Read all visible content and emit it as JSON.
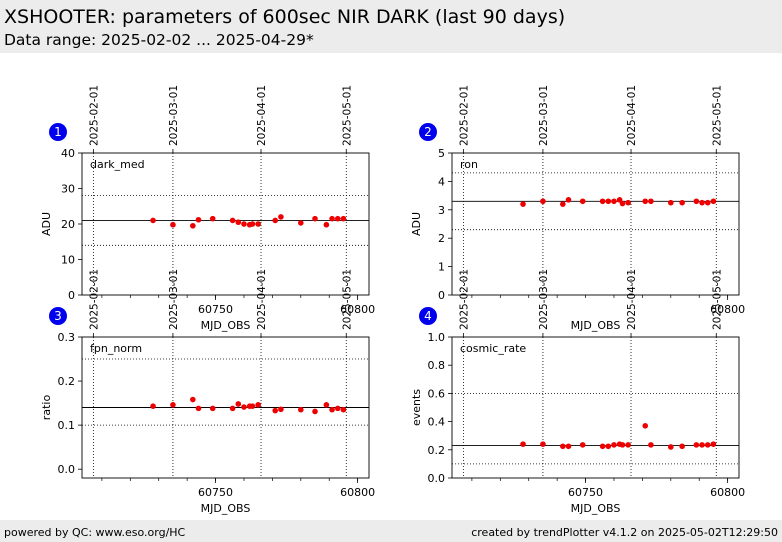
{
  "header": {
    "title": "XSHOOTER: parameters of 600sec NIR DARK (last 90 days)",
    "subtitle": "Data range: 2025-02-02 ... 2025-04-29*"
  },
  "footer": {
    "left": "powered by QC: www.eso.org/HC",
    "right": "created by trendPlotter v4.1.2 on 2025-05-02T12:29:50"
  },
  "colors": {
    "points": "#ee0000",
    "badge": "#0000ee"
  },
  "chart_data": [
    {
      "type": "scatter",
      "badge": "1",
      "label": "dark_med",
      "xlabel": "MJD_OBS",
      "ylabel": "ADU",
      "xlim": [
        60703,
        60804
      ],
      "ylim": [
        0,
        40
      ],
      "xticks": [
        60750,
        60800
      ],
      "yticks": [
        0,
        10,
        20,
        30,
        40
      ],
      "date_ticks": [
        {
          "mjd": 60707,
          "label": "2025-02-01"
        },
        {
          "mjd": 60735,
          "label": "2025-03-01"
        },
        {
          "mjd": 60766,
          "label": "2025-04-01"
        },
        {
          "mjd": 60796,
          "label": "2025-05-01"
        }
      ],
      "hlines": [
        {
          "y": 21,
          "style": "solid"
        },
        {
          "y": 28,
          "style": "dotted"
        },
        {
          "y": 14,
          "style": "dotted"
        }
      ],
      "x": [
        60728,
        60735,
        60742,
        60744,
        60749,
        60756,
        60758,
        60760,
        60762,
        60763,
        60765,
        60771,
        60773,
        60780,
        60785,
        60789,
        60791,
        60793,
        60795
      ],
      "y": [
        21.0,
        19.8,
        19.5,
        21.2,
        21.5,
        21.0,
        20.5,
        20.0,
        19.8,
        20.0,
        20.0,
        21.0,
        22.0,
        20.3,
        21.5,
        19.8,
        21.5,
        21.5,
        21.5
      ]
    },
    {
      "type": "scatter",
      "badge": "2",
      "label": "ron",
      "xlabel": "MJD_OBS",
      "ylabel": "ADU",
      "xlim": [
        60703,
        60804
      ],
      "ylim": [
        0,
        5
      ],
      "xticks": [
        60800
      ],
      "yticks": [
        0,
        1,
        2,
        3,
        4,
        5
      ],
      "date_ticks": [
        {
          "mjd": 60707,
          "label": "2025-02-01"
        },
        {
          "mjd": 60735,
          "label": "2025-03-01"
        },
        {
          "mjd": 60766,
          "label": "2025-04-01"
        },
        {
          "mjd": 60796,
          "label": "2025-05-01"
        }
      ],
      "hlines": [
        {
          "y": 3.3,
          "style": "solid"
        },
        {
          "y": 4.3,
          "style": "dotted"
        },
        {
          "y": 2.3,
          "style": "dotted"
        }
      ],
      "x": [
        60728,
        60735,
        60742,
        60744,
        60749,
        60756,
        60758,
        60760,
        60762,
        60763,
        60765,
        60771,
        60773,
        60780,
        60784,
        60789,
        60791,
        60793,
        60795
      ],
      "y": [
        3.2,
        3.3,
        3.2,
        3.35,
        3.3,
        3.3,
        3.3,
        3.3,
        3.35,
        3.22,
        3.25,
        3.3,
        3.3,
        3.25,
        3.25,
        3.3,
        3.25,
        3.25,
        3.3
      ]
    },
    {
      "type": "scatter",
      "badge": "3",
      "label": "fpn_norm",
      "xlabel": "MJD_OBS",
      "ylabel": "ratio",
      "xlim": [
        60703,
        60804
      ],
      "ylim": [
        -0.02,
        0.3
      ],
      "xticks": [
        60750,
        60800
      ],
      "yticks": [
        0.0,
        0.1,
        0.2,
        0.3
      ],
      "date_ticks": [
        {
          "mjd": 60707,
          "label": "2025-02-01"
        },
        {
          "mjd": 60735,
          "label": "2025-03-01"
        },
        {
          "mjd": 60766,
          "label": "2025-04-01"
        },
        {
          "mjd": 60796,
          "label": "2025-05-01"
        }
      ],
      "hlines": [
        {
          "y": 0.14,
          "style": "solid"
        },
        {
          "y": 0.25,
          "style": "dotted"
        },
        {
          "y": 0.1,
          "style": "dotted"
        }
      ],
      "x": [
        60728,
        60735,
        60742,
        60744,
        60749,
        60756,
        60758,
        60760,
        60762,
        60763,
        60765,
        60771,
        60773,
        60780,
        60785,
        60789,
        60791,
        60793,
        60795
      ],
      "y": [
        0.143,
        0.146,
        0.158,
        0.138,
        0.138,
        0.138,
        0.148,
        0.141,
        0.143,
        0.143,
        0.146,
        0.133,
        0.136,
        0.135,
        0.131,
        0.146,
        0.135,
        0.138,
        0.135
      ]
    },
    {
      "type": "scatter",
      "badge": "4",
      "label": "cosmic_rate",
      "xlabel": "MJD_OBS",
      "ylabel": "events",
      "xlim": [
        60703,
        60804
      ],
      "ylim": [
        0,
        1.0
      ],
      "xticks": [
        60750,
        60800
      ],
      "yticks": [
        0.0,
        0.2,
        0.4,
        0.6,
        0.8,
        1.0
      ],
      "date_ticks": [
        {
          "mjd": 60707,
          "label": "2025-02-01"
        },
        {
          "mjd": 60735,
          "label": "2025-03-01"
        },
        {
          "mjd": 60766,
          "label": "2025-04-01"
        },
        {
          "mjd": 60796,
          "label": "2025-05-01"
        }
      ],
      "hlines": [
        {
          "y": 0.23,
          "style": "solid"
        },
        {
          "y": 0.6,
          "style": "dotted"
        },
        {
          "y": 0.1,
          "style": "dotted"
        }
      ],
      "x": [
        60728,
        60735,
        60742,
        60744,
        60749,
        60756,
        60758,
        60760,
        60762,
        60763,
        60765,
        60771,
        60773,
        60780,
        60784,
        60789,
        60791,
        60793,
        60795
      ],
      "y": [
        0.24,
        0.24,
        0.225,
        0.225,
        0.235,
        0.225,
        0.225,
        0.235,
        0.24,
        0.235,
        0.235,
        0.37,
        0.235,
        0.22,
        0.225,
        0.235,
        0.235,
        0.235,
        0.24
      ]
    }
  ]
}
